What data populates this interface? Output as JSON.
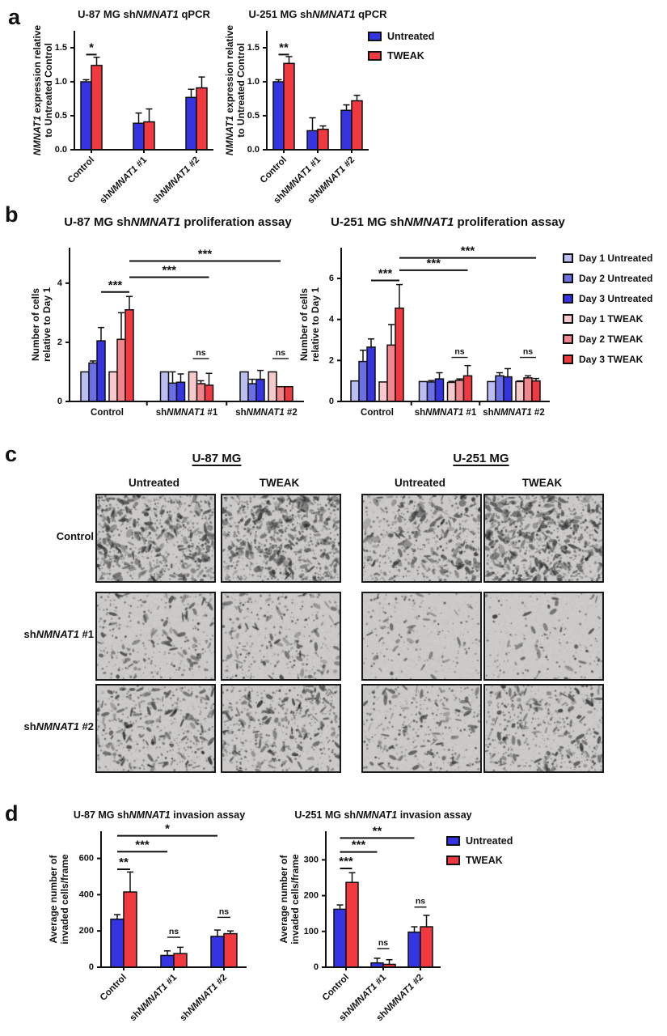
{
  "panels": {
    "a": {
      "letter": "a",
      "legend": [
        {
          "label": "Untreated",
          "color": "#3534e2"
        },
        {
          "label": "TWEAK",
          "color": "#f03a40"
        }
      ]
    },
    "b": {
      "letter": "b",
      "legend": [
        {
          "label": "Day 1 Untreated",
          "color": "#babdf0"
        },
        {
          "label": "Day 2 Untreated",
          "color": "#6b6fe4"
        },
        {
          "label": "Day 3 Untreated",
          "color": "#3534e2"
        },
        {
          "label": "Day 1 TWEAK",
          "color": "#f7c9cb"
        },
        {
          "label": "Day 2 TWEAK",
          "color": "#f0868b"
        },
        {
          "label": "Day 3 TWEAK",
          "color": "#f03a40"
        }
      ]
    },
    "c": {
      "letter": "c",
      "cell_lines": [
        "U-87 MG",
        "U-251 MG"
      ],
      "treatments": [
        "Untreated",
        "TWEAK",
        "Untreated",
        "TWEAK"
      ],
      "rows": [
        "Control",
        "sh*NMNAT1* #1",
        "sh*NMNAT1* #2"
      ],
      "images": [
        {
          "row": "Control",
          "cell_line": "U-87 MG",
          "treatment": "Untreated",
          "density": 0.85,
          "seed": 11
        },
        {
          "row": "Control",
          "cell_line": "U-87 MG",
          "treatment": "TWEAK",
          "density": 0.92,
          "seed": 22
        },
        {
          "row": "Control",
          "cell_line": "U-251 MG",
          "treatment": "Untreated",
          "density": 0.6,
          "seed": 33
        },
        {
          "row": "Control",
          "cell_line": "U-251 MG",
          "treatment": "TWEAK",
          "density": 0.95,
          "seed": 44
        },
        {
          "row": "shNMNAT1 #1",
          "cell_line": "U-87 MG",
          "treatment": "Untreated",
          "density": 0.3,
          "seed": 55
        },
        {
          "row": "shNMNAT1 #1",
          "cell_line": "U-87 MG",
          "treatment": "TWEAK",
          "density": 0.3,
          "seed": 66
        },
        {
          "row": "shNMNAT1 #1",
          "cell_line": "U-251 MG",
          "treatment": "Untreated",
          "density": 0.08,
          "seed": 77
        },
        {
          "row": "shNMNAT1 #1",
          "cell_line": "U-251 MG",
          "treatment": "TWEAK",
          "density": 0.06,
          "seed": 88
        },
        {
          "row": "shNMNAT1 #2",
          "cell_line": "U-87 MG",
          "treatment": "Untreated",
          "density": 0.5,
          "seed": 99
        },
        {
          "row": "shNMNAT1 #2",
          "cell_line": "U-87 MG",
          "treatment": "TWEAK",
          "density": 0.55,
          "seed": 110
        },
        {
          "row": "shNMNAT1 #2",
          "cell_line": "U-251 MG",
          "treatment": "Untreated",
          "density": 0.33,
          "seed": 121
        },
        {
          "row": "shNMNAT1 #2",
          "cell_line": "U-251 MG",
          "treatment": "TWEAK",
          "density": 0.5,
          "seed": 132
        }
      ]
    },
    "d": {
      "letter": "d",
      "legend": [
        {
          "label": "Untreated",
          "color": "#3534e2"
        },
        {
          "label": "TWEAK",
          "color": "#f03a40"
        }
      ]
    }
  },
  "chart_data": [
    {
      "id": "a1",
      "type": "bar",
      "title": "U-87 MG sh*NMNAT1* qPCR",
      "ylabel_lines": [
        "*NMNAT1* expression relative",
        "to Untreated Control"
      ],
      "categories": [
        "Control",
        "sh*NMNAT1* #1",
        "sh*NMNAT1* #2"
      ],
      "ylim": [
        0,
        1.75
      ],
      "yticks": [
        0,
        0.5,
        1.0,
        1.5
      ],
      "ytick_labels": [
        "0.0",
        "0.5",
        "1.0",
        "1.5"
      ],
      "series": [
        {
          "name": "Untreated",
          "color": "#3534e2",
          "values": [
            1.0,
            0.39,
            0.77
          ],
          "errors": [
            0.03,
            0.15,
            0.12
          ]
        },
        {
          "name": "TWEAK",
          "color": "#f03a40",
          "values": [
            1.24,
            0.41,
            0.91
          ],
          "errors": [
            0.12,
            0.19,
            0.16
          ]
        }
      ],
      "annotations": [
        {
          "label": "*",
          "from": [
            0,
            0
          ],
          "to": [
            0,
            1
          ],
          "y": 1.4
        }
      ]
    },
    {
      "id": "a2",
      "type": "bar",
      "title": "U-251 MG sh*NMNAT1* qPCR",
      "ylabel_lines": [
        "*NMNAT1* expression relative",
        "to Untreated Control"
      ],
      "categories": [
        "Control",
        "sh*NMNAT1* #1",
        "sh*NMNAT1* #2"
      ],
      "ylim": [
        0,
        1.75
      ],
      "yticks": [
        0,
        0.5,
        1.0,
        1.5
      ],
      "ytick_labels": [
        "0.0",
        "0.5",
        "1.0",
        "1.5"
      ],
      "series": [
        {
          "name": "Untreated",
          "color": "#3534e2",
          "values": [
            1.0,
            0.28,
            0.58
          ],
          "errors": [
            0.03,
            0.19,
            0.08
          ]
        },
        {
          "name": "TWEAK",
          "color": "#f03a40",
          "values": [
            1.27,
            0.3,
            0.72
          ],
          "errors": [
            0.1,
            0.05,
            0.08
          ]
        }
      ],
      "annotations": [
        {
          "label": "**",
          "from": [
            0,
            0
          ],
          "to": [
            0,
            1
          ],
          "y": 1.4
        }
      ]
    },
    {
      "id": "b1",
      "type": "bar",
      "title": "U-87 MG sh*NMNAT1* proliferation assay",
      "ylabel_lines": [
        "Number of cells",
        "relative to Day 1"
      ],
      "categories": [
        "Control",
        "sh*NMNAT1* #1",
        "sh*NMNAT1* #2"
      ],
      "ylim": [
        0,
        5.2
      ],
      "yticks": [
        0,
        2,
        4
      ],
      "ytick_labels": [
        "0",
        "2",
        "4"
      ],
      "series": [
        {
          "name": "Day 1 Untreated",
          "color": "#babdf0",
          "values": [
            1.0,
            1.0,
            1.0
          ],
          "errors": [
            0,
            0,
            0
          ]
        },
        {
          "name": "Day 2 Untreated",
          "color": "#6b6fe4",
          "values": [
            1.3,
            0.62,
            0.6
          ],
          "errors": [
            0.07,
            0.38,
            0.15
          ]
        },
        {
          "name": "Day 3 Untreated",
          "color": "#3534e2",
          "values": [
            2.05,
            0.65,
            0.75
          ],
          "errors": [
            0.45,
            0.28,
            0.3
          ]
        },
        {
          "name": "Day 1 TWEAK",
          "color": "#f7c9cb",
          "values": [
            1.0,
            1.0,
            1.0
          ],
          "errors": [
            0,
            0,
            0
          ]
        },
        {
          "name": "Day 2 TWEAK",
          "color": "#f0868b",
          "values": [
            2.1,
            0.6,
            0.5
          ],
          "errors": [
            0.9,
            0.1,
            0
          ]
        },
        {
          "name": "Day 3 TWEAK",
          "color": "#f03a40",
          "values": [
            3.1,
            0.55,
            0.5
          ],
          "errors": [
            0.45,
            0.4,
            0
          ]
        }
      ],
      "annotations": [
        {
          "label": "***",
          "from": [
            0,
            2
          ],
          "to": [
            0,
            5
          ],
          "y": 3.7
        },
        {
          "label": "***",
          "from": [
            0,
            5
          ],
          "to": [
            1,
            5
          ],
          "y": 4.2
        },
        {
          "label": "***",
          "from": [
            0,
            5
          ],
          "to": [
            2,
            4
          ],
          "y": 4.75
        },
        {
          "label": "ns",
          "from": [
            1,
            3
          ],
          "to": [
            1,
            5
          ],
          "y": 1.45
        },
        {
          "label": "ns",
          "from": [
            2,
            3
          ],
          "to": [
            2,
            5
          ],
          "y": 1.45
        }
      ]
    },
    {
      "id": "b2",
      "type": "bar",
      "title": "U-251 MG sh*NMNAT1* proliferation assay",
      "ylabel_lines": [
        "Number of cells",
        "relative to Day 1"
      ],
      "categories": [
        "Control",
        "sh*NMNAT1* #1",
        "sh*NMNAT1* #2"
      ],
      "ylim": [
        0,
        7.5
      ],
      "yticks": [
        0,
        2,
        4,
        6
      ],
      "ytick_labels": [
        "0",
        "2",
        "4",
        "6"
      ],
      "series": [
        {
          "name": "Day 1 Untreated",
          "color": "#babdf0",
          "values": [
            1.0,
            0.97,
            0.97
          ],
          "errors": [
            0,
            0,
            0
          ]
        },
        {
          "name": "Day 2 Untreated",
          "color": "#6b6fe4",
          "values": [
            1.95,
            0.95,
            1.25
          ],
          "errors": [
            0.55,
            0.07,
            0.15
          ]
        },
        {
          "name": "Day 3 Untreated",
          "color": "#3534e2",
          "values": [
            2.65,
            1.1,
            1.2
          ],
          "errors": [
            0.4,
            0.3,
            0.4
          ]
        },
        {
          "name": "Day 1 TWEAK",
          "color": "#f7c9cb",
          "values": [
            0.95,
            0.93,
            0.97
          ],
          "errors": [
            0,
            0.05,
            0.03
          ]
        },
        {
          "name": "Day 2 TWEAK",
          "color": "#f0868b",
          "values": [
            2.75,
            1.03,
            1.15
          ],
          "errors": [
            1.0,
            0.07,
            0.1
          ]
        },
        {
          "name": "Day 3 TWEAK",
          "color": "#f03a40",
          "values": [
            4.55,
            1.25,
            1.0
          ],
          "errors": [
            1.15,
            0.5,
            0.12
          ]
        }
      ],
      "annotations": [
        {
          "label": "***",
          "from": [
            0,
            2
          ],
          "to": [
            0,
            5
          ],
          "y": 5.9
        },
        {
          "label": "***",
          "from": [
            0,
            5
          ],
          "to": [
            1,
            5
          ],
          "y": 6.4
        },
        {
          "label": "***",
          "from": [
            0,
            5
          ],
          "to": [
            2,
            5
          ],
          "y": 7.0
        },
        {
          "label": "ns",
          "from": [
            1,
            3
          ],
          "to": [
            1,
            5
          ],
          "y": 2.15
        },
        {
          "label": "ns",
          "from": [
            2,
            3
          ],
          "to": [
            2,
            5
          ],
          "y": 2.15
        }
      ]
    },
    {
      "id": "d1",
      "type": "bar",
      "title": "U-87 MG sh*NMNAT1* invasion assay",
      "ylabel_lines": [
        "Average number of",
        "invaded cells/frame"
      ],
      "categories": [
        "Control",
        "sh*NMNAT1* #1",
        "sh*NMNAT1* #2"
      ],
      "ylim": [
        0,
        750
      ],
      "yticks": [
        0,
        200,
        400,
        600
      ],
      "ytick_labels": [
        "0",
        "200",
        "400",
        "600"
      ],
      "series": [
        {
          "name": "Untreated",
          "color": "#3534e2",
          "values": [
            265,
            65,
            170
          ],
          "errors": [
            25,
            25,
            35
          ]
        },
        {
          "name": "TWEAK",
          "color": "#f03a40",
          "values": [
            415,
            75,
            185
          ],
          "errors": [
            110,
            35,
            15
          ]
        }
      ],
      "annotations": [
        {
          "label": "**",
          "from": [
            0,
            0
          ],
          "to": [
            0,
            1
          ],
          "y": 540
        },
        {
          "label": "***",
          "from": [
            0,
            0
          ],
          "to": [
            1,
            0
          ],
          "y": 637
        },
        {
          "label": "*",
          "from": [
            0,
            0
          ],
          "to": [
            2,
            0
          ],
          "y": 725
        },
        {
          "label": "ns",
          "from": [
            1,
            0
          ],
          "to": [
            1,
            1
          ],
          "y": 165
        },
        {
          "label": "ns",
          "from": [
            2,
            0
          ],
          "to": [
            2,
            1
          ],
          "y": 275
        }
      ]
    },
    {
      "id": "d2",
      "type": "bar",
      "title": "U-251 MG sh*NMNAT1* invasion assay",
      "ylabel_lines": [
        "Average number of",
        "invaded cells/frame"
      ],
      "categories": [
        "Control",
        "sh*NMNAT1* #1",
        "sh*NMNAT1* #2"
      ],
      "ylim": [
        0,
        380
      ],
      "yticks": [
        0,
        100,
        200,
        300
      ],
      "ytick_labels": [
        "0",
        "100",
        "200",
        "300"
      ],
      "series": [
        {
          "name": "Untreated",
          "color": "#3534e2",
          "values": [
            162,
            12,
            98
          ],
          "errors": [
            12,
            13,
            15
          ]
        },
        {
          "name": "TWEAK",
          "color": "#f03a40",
          "values": [
            237,
            8,
            113
          ],
          "errors": [
            27,
            13,
            32
          ]
        }
      ],
      "annotations": [
        {
          "label": "***",
          "from": [
            0,
            0
          ],
          "to": [
            0,
            1
          ],
          "y": 276
        },
        {
          "label": "***",
          "from": [
            0,
            0
          ],
          "to": [
            1,
            0
          ],
          "y": 322
        },
        {
          "label": "**",
          "from": [
            0,
            0
          ],
          "to": [
            2,
            0
          ],
          "y": 361
        },
        {
          "label": "ns",
          "from": [
            1,
            0
          ],
          "to": [
            1,
            1
          ],
          "y": 52
        },
        {
          "label": "ns",
          "from": [
            2,
            0
          ],
          "to": [
            2,
            1
          ],
          "y": 168
        }
      ]
    }
  ]
}
